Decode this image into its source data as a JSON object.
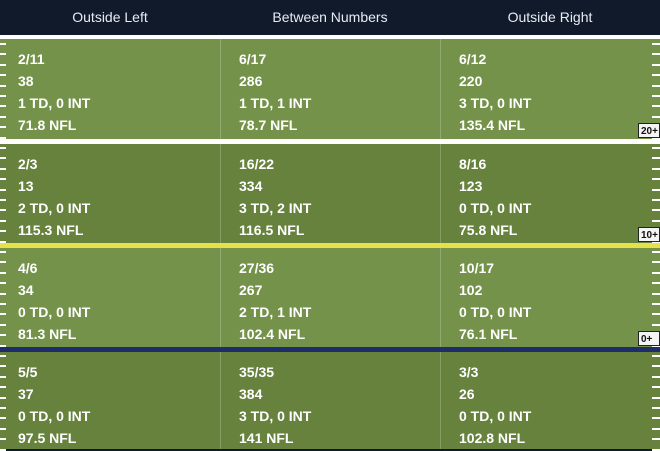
{
  "header": {
    "columns": [
      "Outside Left",
      "Between Numbers",
      "Outside Right"
    ]
  },
  "zones": [
    {
      "yard_label": "20+",
      "cells": [
        {
          "completions": "2/11",
          "yards": "38",
          "td_int": "1 TD, 0 INT",
          "rating": "71.8 NFL"
        },
        {
          "completions": "6/17",
          "yards": "286",
          "td_int": "1 TD, 1 INT",
          "rating": "78.7 NFL"
        },
        {
          "completions": "6/12",
          "yards": "220",
          "td_int": "3 TD, 0 INT",
          "rating": "135.4 NFL"
        }
      ]
    },
    {
      "yard_label": "10+",
      "cells": [
        {
          "completions": "2/3",
          "yards": "13",
          "td_int": "2 TD, 0 INT",
          "rating": "115.3 NFL"
        },
        {
          "completions": "16/22",
          "yards": "334",
          "td_int": "3 TD, 2 INT",
          "rating": "116.5 NFL"
        },
        {
          "completions": "8/16",
          "yards": "123",
          "td_int": "0 TD, 0 INT",
          "rating": "75.8 NFL"
        }
      ]
    },
    {
      "yard_label": "0+",
      "cells": [
        {
          "completions": "4/6",
          "yards": "34",
          "td_int": "0 TD, 0 INT",
          "rating": "81.3 NFL"
        },
        {
          "completions": "27/36",
          "yards": "267",
          "td_int": "2 TD, 1 INT",
          "rating": "102.4 NFL"
        },
        {
          "completions": "10/17",
          "yards": "102",
          "td_int": "0 TD, 0 INT",
          "rating": "76.1 NFL"
        }
      ]
    },
    {
      "yard_label": "",
      "cells": [
        {
          "completions": "5/5",
          "yards": "37",
          "td_int": "0 TD, 0 INT",
          "rating": "97.5 NFL"
        },
        {
          "completions": "35/35",
          "yards": "384",
          "td_int": "3 TD, 0 INT",
          "rating": "141 NFL"
        },
        {
          "completions": "3/3",
          "yards": "26",
          "td_int": "0 TD, 0 INT",
          "rating": "102.8 NFL"
        }
      ]
    }
  ],
  "colors": {
    "header_bg": "#101a2b",
    "field_light": "#74924a",
    "field_dark": "#66823d",
    "line_20": "#ffffff",
    "line_10": "#e6e14a",
    "line_of_scrimmage": "#1e2c6b"
  }
}
